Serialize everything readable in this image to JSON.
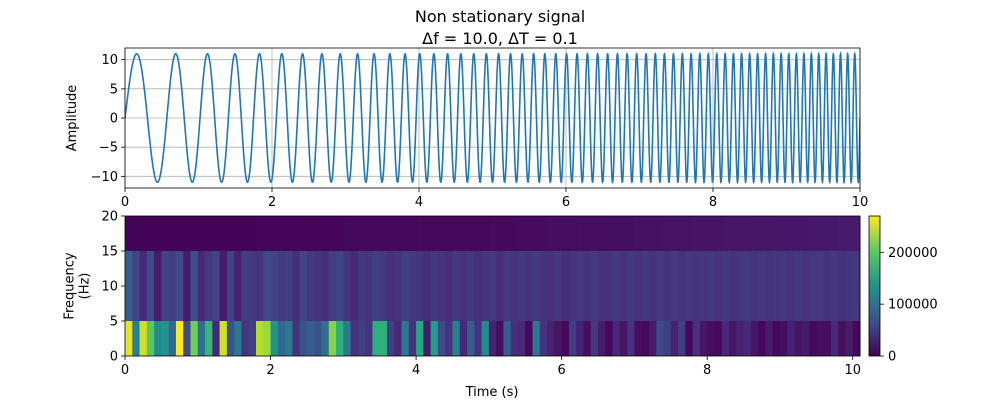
{
  "figure": {
    "title": "Non stationary signal",
    "subtitle": "Δf = 10.0, ΔT = 0.1"
  },
  "chart_data": [
    {
      "type": "line",
      "ylabel": "Amplitude",
      "xlabel": "",
      "xlim": [
        0,
        10
      ],
      "ylim": [
        -12,
        12
      ],
      "xticks": [
        0,
        2,
        4,
        6,
        8,
        10
      ],
      "yticks": [
        -10,
        -5,
        0,
        5,
        10
      ],
      "grid": true,
      "series": [
        {
          "color": "#1f77b4",
          "amplitude": 11,
          "frequency_start_hz": 1.5,
          "frequency_end_hz": 10.5,
          "duration_s": 10
        }
      ]
    },
    {
      "type": "heatmap",
      "xlabel": "Time (s)",
      "ylabel": "Frequency\n(Hz)",
      "xlim": [
        0,
        10.1
      ],
      "ylim": [
        0,
        20
      ],
      "xticks": [
        0,
        2,
        4,
        6,
        8,
        10
      ],
      "yticks": [
        0,
        5,
        10,
        15,
        20
      ],
      "colormap": "viridis",
      "colorbar": {
        "vmin": 0,
        "vmax": 270000,
        "ticks": [
          0,
          100000,
          200000
        ],
        "tick_labels": [
          "0",
          "100000",
          "200000"
        ]
      },
      "time_bin_width_s": 0.1,
      "freq_bands_hz": [
        [
          0,
          5
        ],
        [
          5,
          15
        ],
        [
          15,
          20
        ]
      ],
      "band_0_5": [
        260000,
        120000,
        250000,
        200000,
        130000,
        140000,
        90000,
        270000,
        60000,
        210000,
        100000,
        180000,
        30000,
        250000,
        70000,
        110000,
        40000,
        50000,
        240000,
        230000,
        140000,
        90000,
        110000,
        40000,
        70000,
        80000,
        70000,
        100000,
        220000,
        170000,
        110000,
        40000,
        50000,
        40000,
        170000,
        170000,
        50000,
        30000,
        110000,
        40000,
        160000,
        20000,
        150000,
        60000,
        40000,
        120000,
        30000,
        80000,
        40000,
        130000,
        25000,
        10000,
        80000,
        35000,
        30000,
        5000,
        110000,
        40000,
        25000,
        15000,
        5000,
        50000,
        25000,
        10000,
        45000,
        20000,
        5000,
        30000,
        15000,
        40000,
        10000,
        5000,
        20000,
        60000,
        50000,
        25000,
        50000,
        5000,
        40000,
        15000,
        10000,
        5000,
        30000,
        15000,
        25000,
        30000,
        15000,
        5000,
        20000,
        5000,
        10000,
        25000,
        15000,
        20000,
        5000,
        10000,
        10000,
        30000,
        10000,
        20000,
        5000
      ],
      "band_5_15": [
        80000,
        55000,
        30000,
        60000,
        20000,
        55000,
        50000,
        60000,
        20000,
        65000,
        30000,
        45000,
        55000,
        20000,
        55000,
        25000,
        50000,
        45000,
        40000,
        60000,
        55000,
        45000,
        50000,
        35000,
        55000,
        45000,
        40000,
        35000,
        50000,
        55000,
        40000,
        30000,
        45000,
        40000,
        50000,
        45000,
        35000,
        40000,
        50000,
        45000,
        40000,
        35000,
        45000,
        40000,
        35000,
        45000,
        40000,
        45000,
        35000,
        40000,
        45000,
        35000,
        45000,
        40000,
        45000,
        40000,
        45000,
        40000,
        40000,
        45000,
        35000,
        40000,
        45000,
        40000,
        45000,
        40000,
        40000,
        45000,
        40000,
        45000,
        40000,
        45000,
        40000,
        45000,
        40000,
        45000,
        40000,
        45000,
        40000,
        42000,
        45000,
        40000,
        45000,
        40000,
        42000,
        45000,
        40000,
        45000,
        40000,
        42000,
        45000,
        40000,
        45000,
        40000,
        42000,
        45000,
        40000,
        45000,
        40000,
        42000,
        45000
      ],
      "band_15_20": [
        3000,
        3000,
        3000,
        3000,
        3000,
        3000,
        3000,
        3000,
        3000,
        3000,
        3000,
        3000,
        3000,
        3000,
        3000,
        3000,
        3000,
        3000,
        4000,
        4000,
        4000,
        4000,
        4000,
        4000,
        4000,
        4000,
        4000,
        4000,
        4000,
        4000,
        5000,
        5000,
        5000,
        5000,
        5000,
        5000,
        5000,
        5000,
        5000,
        5000,
        6000,
        6000,
        6000,
        6000,
        6000,
        6000,
        6000,
        6000,
        6000,
        6000,
        7000,
        7000,
        7000,
        7000,
        8000,
        8000,
        8000,
        8000,
        9000,
        9000,
        9000,
        9000,
        10000,
        10000,
        10000,
        10000,
        11000,
        11000,
        11000,
        11000,
        12000,
        12000,
        12000,
        12000,
        13000,
        13000,
        13000,
        13000,
        14000,
        14000,
        14000,
        14000,
        15000,
        15000,
        15000,
        15000,
        16000,
        16000,
        16000,
        16000,
        17000,
        17000,
        17000,
        17000,
        18000,
        18000,
        18000,
        18000,
        19000,
        19000,
        20000
      ]
    }
  ]
}
